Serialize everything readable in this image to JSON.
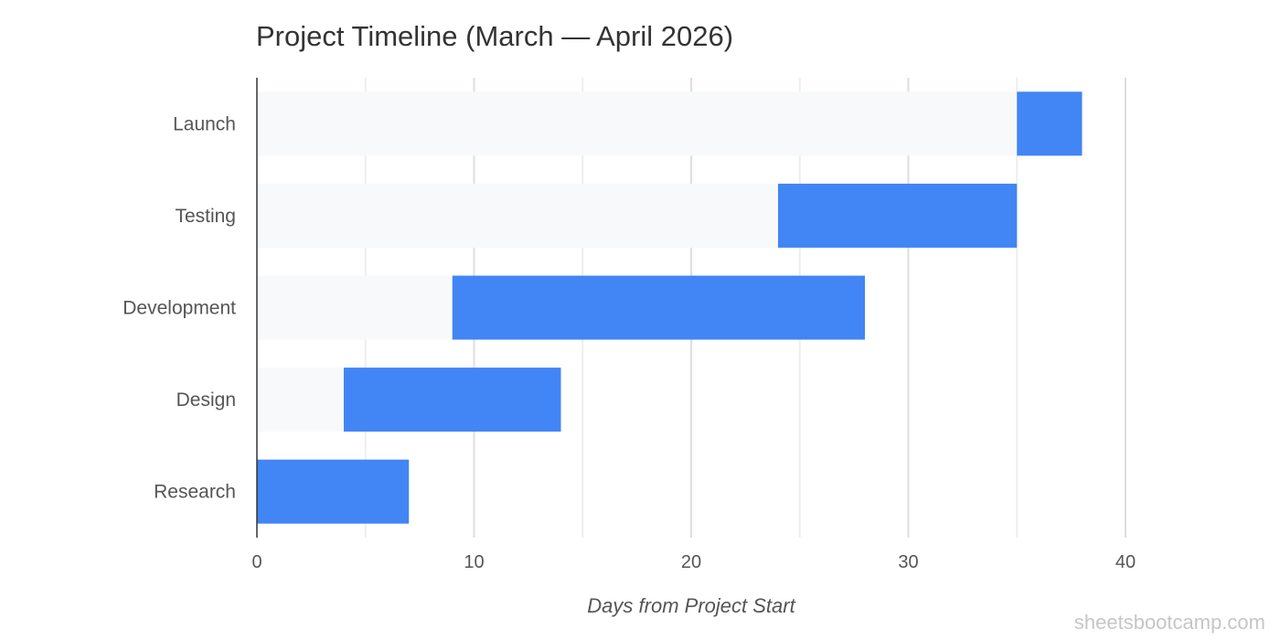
{
  "chart_data": {
    "type": "bar",
    "orientation": "horizontal",
    "stacked": true,
    "title": "Project Timeline (March — April 2026)",
    "xlabel": "Days from Project Start",
    "ylabel": "",
    "xlim": [
      0,
      40
    ],
    "xticks": [
      0,
      10,
      20,
      30,
      40
    ],
    "grid": true,
    "legend": "none",
    "categories": [
      "Launch",
      "Testing",
      "Development",
      "Design",
      "Research"
    ],
    "series": [
      {
        "role": "offset",
        "values": [
          35,
          24,
          9,
          4,
          0
        ],
        "color": "#f8f9fa"
      },
      {
        "role": "duration",
        "values": [
          3,
          11,
          19,
          10,
          7
        ],
        "color": "#4285f4"
      }
    ]
  },
  "watermark": "sheetsbootcamp.com"
}
